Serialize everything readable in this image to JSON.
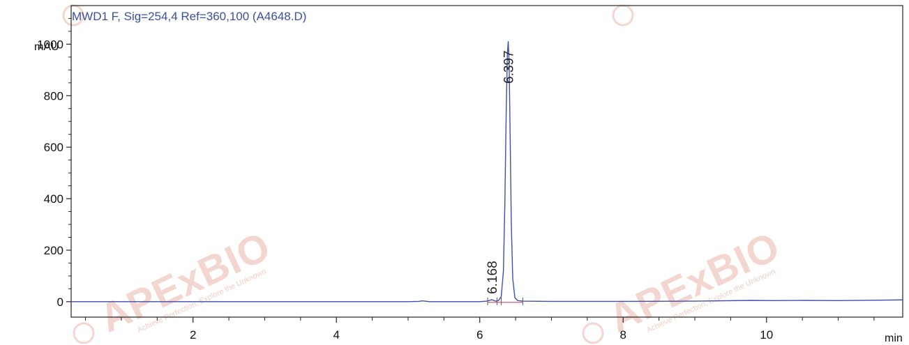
{
  "chart_data": {
    "type": "line",
    "title": "MWD1 F, Sig=254,4 Ref=360,100 (A4648.D)",
    "ylabel": "mAU",
    "xlabel": "min",
    "xlim": [
      0.3,
      11.9
    ],
    "ylim": [
      -60,
      1150
    ],
    "x_ticks": [
      2,
      4,
      6,
      8,
      10
    ],
    "y_ticks": [
      0,
      200,
      400,
      600,
      800,
      1000
    ],
    "grid": false,
    "series": [
      {
        "color": "#3d4fb0",
        "x": [
          0.3,
          5.0,
          5.15,
          5.2,
          5.3,
          6.0,
          6.1,
          6.15,
          6.168,
          6.19,
          6.22,
          6.26,
          6.3,
          6.33,
          6.35,
          6.37,
          6.385,
          6.397,
          6.41,
          6.425,
          6.44,
          6.46,
          6.49,
          6.53,
          6.6,
          7.0,
          8.0,
          9.0,
          9.8,
          10.1,
          10.5,
          11.0,
          11.9
        ],
        "y": [
          0,
          0,
          1,
          3,
          0,
          0,
          2,
          6,
          8,
          5,
          2,
          4,
          20,
          120,
          380,
          760,
          960,
          1010,
          920,
          620,
          300,
          90,
          15,
          4,
          2,
          1,
          1,
          2,
          5,
          4,
          5,
          4,
          7
        ]
      }
    ],
    "peaks": [
      {
        "label": "6.168",
        "x": 6.168,
        "y": 8
      },
      {
        "label": "6.397",
        "x": 6.397,
        "y": 1010
      }
    ],
    "baseline_ticks": [
      6.11,
      6.24,
      6.3,
      6.6
    ]
  },
  "watermark": {
    "brand": "APExBIO",
    "tagline": "Achieve Perfection, Explore the Unknown",
    "color": "#f3d6cf"
  }
}
